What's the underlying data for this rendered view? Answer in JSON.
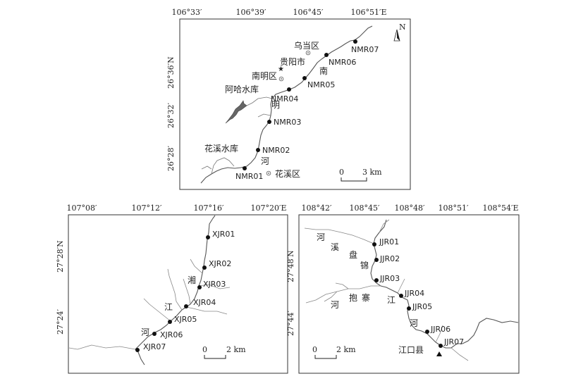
{
  "panels": {
    "top": {
      "top_lon_ticks": [
        "106°33′",
        "106°39′",
        "106°45′",
        "106°51′E"
      ],
      "left_lat_ticks": [
        "26°36′N",
        "26°32′",
        "26°28′"
      ],
      "sites": [
        "NMR07",
        "NMR06",
        "NMR05",
        "NMR04",
        "NMR03",
        "NMR02",
        "NMR01"
      ],
      "river_chars": [
        "南",
        "明",
        "河"
      ],
      "places": {
        "wudang": "乌当区",
        "guiyang": "贵阳市",
        "nanming": "南明区",
        "ahacku": "阿哈水库",
        "huaxi_res": "花溪水库",
        "huaxi": "花溪区"
      },
      "scale": {
        "zero": "0",
        "end": "3 km"
      },
      "north": "N"
    },
    "bottom_left": {
      "top_lon_ticks": [
        "107°08′",
        "107°12′",
        "107°16′",
        "107°20′E"
      ],
      "left_lat_ticks": [
        "27°28′N",
        "27°24′"
      ],
      "sites": [
        "XJR01",
        "XJR02",
        "XJR03",
        "XJR04",
        "XJR05",
        "XJR06",
        "XJR07"
      ],
      "river_chars": [
        "湘",
        "江",
        "河"
      ],
      "scale": {
        "zero": "0",
        "end": "2 km"
      }
    },
    "bottom_right": {
      "top_lon_ticks": [
        "108°42′",
        "108°45′",
        "108°48′",
        "108°51′",
        "108°54′E"
      ],
      "left_lat_ticks": [
        "27°48′N",
        "27°44′"
      ],
      "sites": [
        "JJR01",
        "JJR02",
        "JJR03",
        "JJR04",
        "JJR05",
        "JJR06",
        "JJR07"
      ],
      "river_chars": [
        "锦",
        "江",
        "河"
      ],
      "tributaries": {
        "panxi": [
          "河",
          "溪",
          "盘"
        ],
        "baozhai": [
          "河",
          "抱",
          "寨"
        ]
      },
      "places": {
        "jiangkou": "江口县"
      },
      "scale": {
        "zero": "0",
        "end": "2 km"
      }
    }
  }
}
